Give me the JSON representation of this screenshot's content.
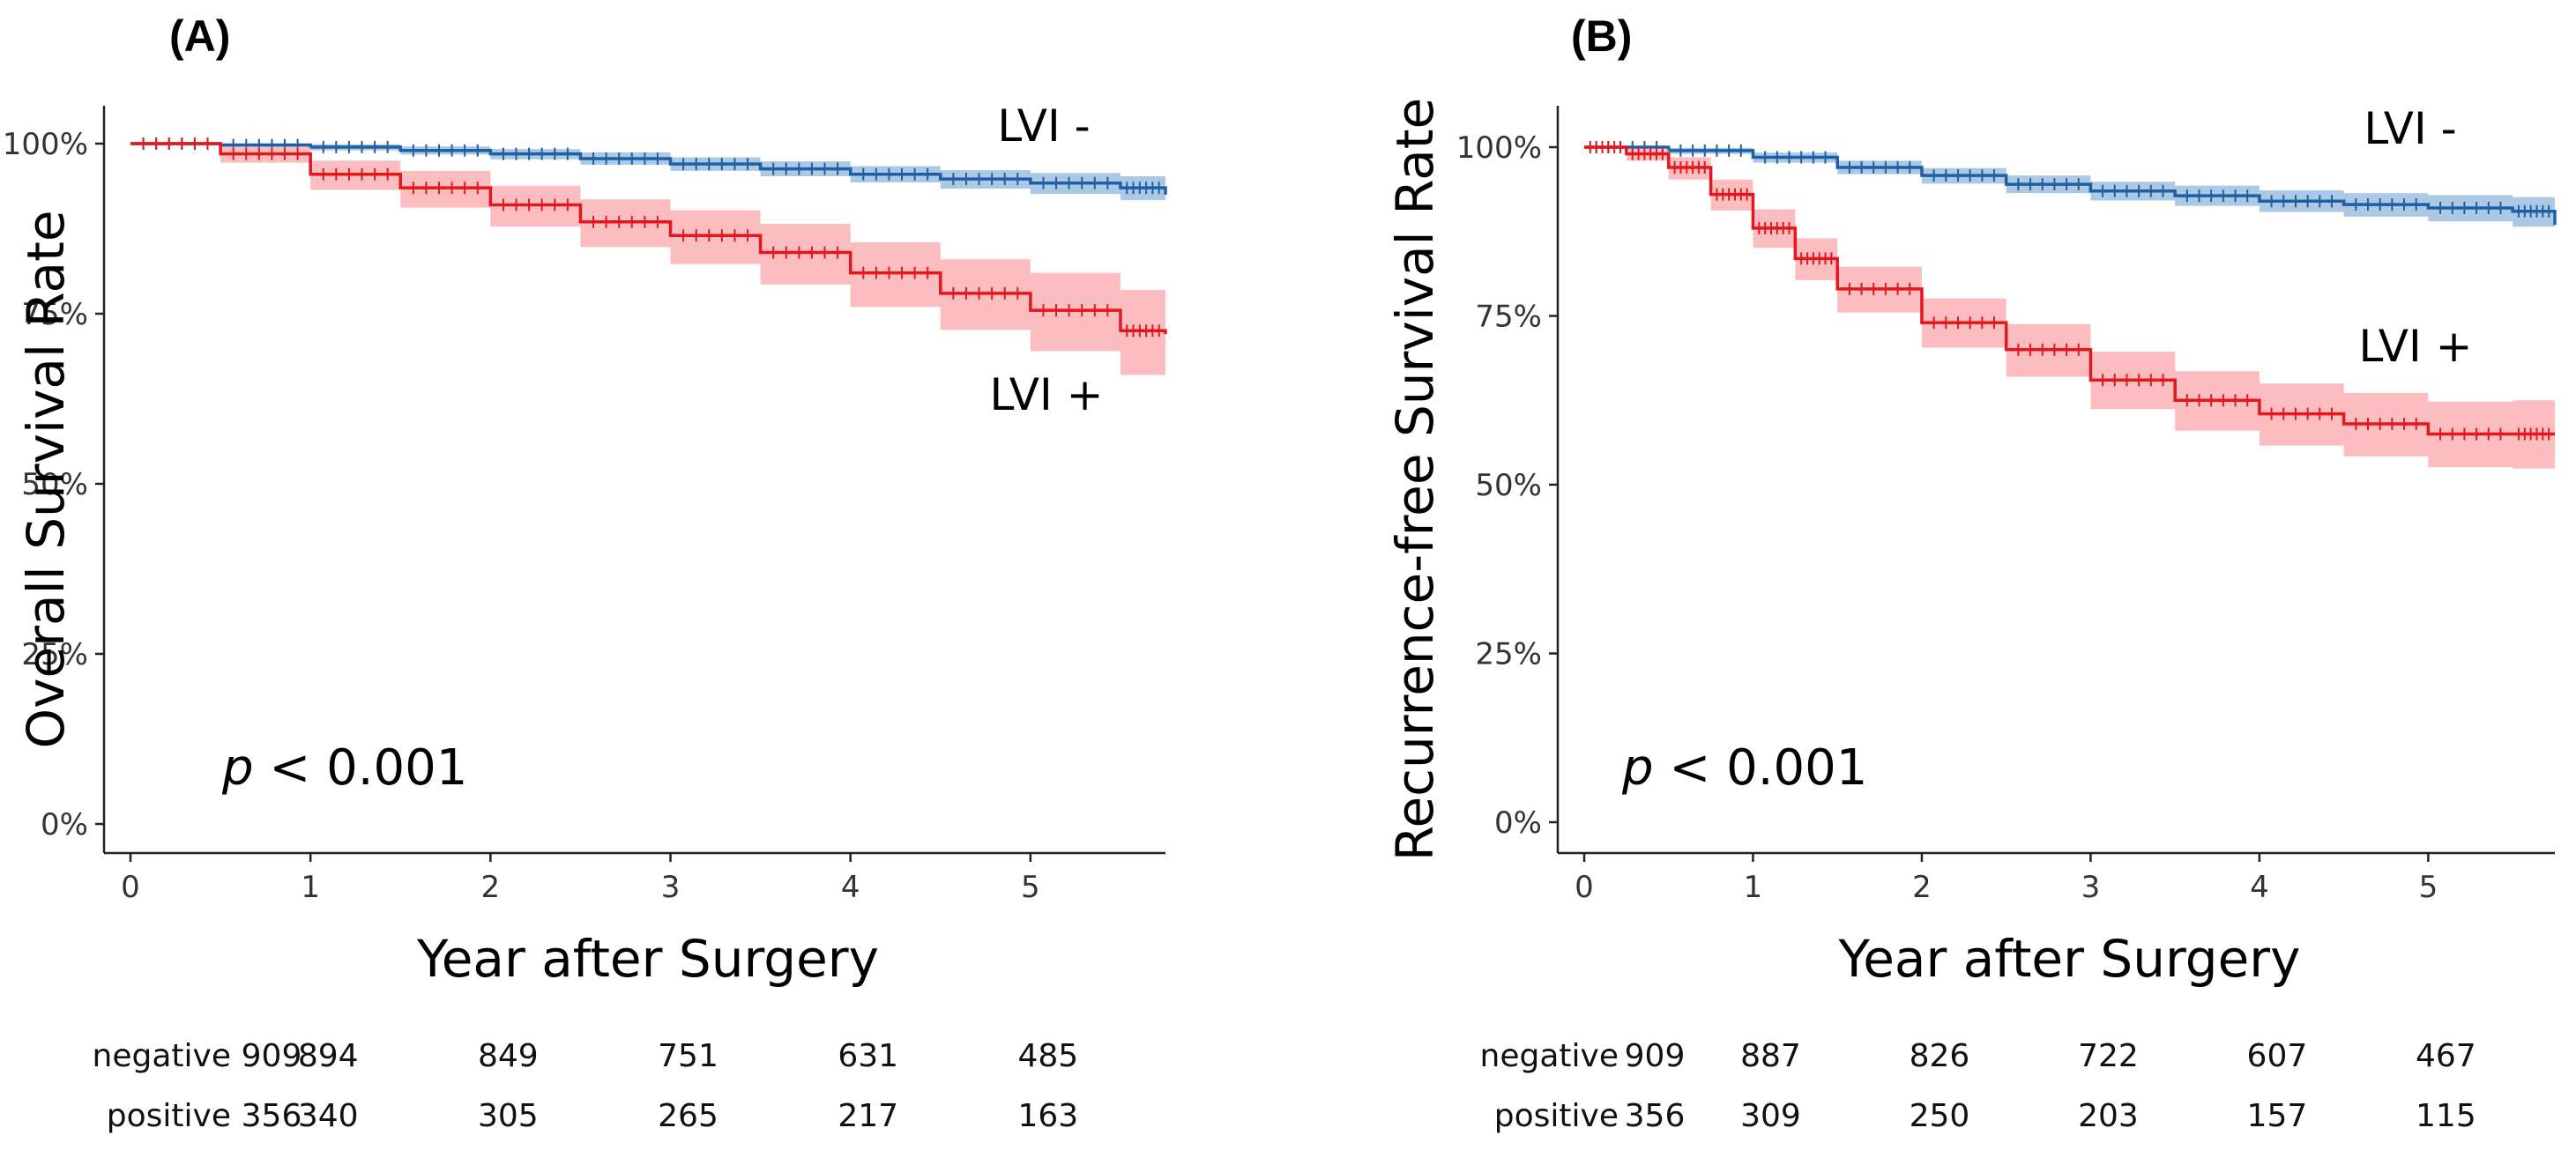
{
  "chart_data": [
    {
      "type": "line",
      "panel": "(A)",
      "ylabel": "Overall Survival Rate",
      "xlabel": "Year after Surgery",
      "xlim": [
        0,
        5.75
      ],
      "ylim": [
        0,
        1
      ],
      "xticks": [
        "0",
        "1",
        "2",
        "3",
        "4",
        "5"
      ],
      "yticks": [
        "0%",
        "25%",
        "50%",
        "75%",
        "100%"
      ],
      "annotation_prefix": "p",
      "annotation_rest": " < 0.001",
      "series": [
        {
          "name": "LVI -",
          "color": "#1f5fa3",
          "band_color": "#8fb7dc",
          "x": [
            0,
            0.5,
            1,
            1.5,
            2,
            2.5,
            3,
            3.5,
            4,
            4.5,
            5,
            5.5,
            5.75
          ],
          "values": [
            1.0,
            0.998,
            0.995,
            0.99,
            0.985,
            0.978,
            0.97,
            0.963,
            0.955,
            0.948,
            0.942,
            0.935,
            0.925
          ],
          "lower": [
            1.0,
            0.995,
            0.99,
            0.984,
            0.977,
            0.969,
            0.96,
            0.952,
            0.943,
            0.934,
            0.926,
            0.917,
            0.905
          ],
          "upper": [
            1.0,
            1.0,
            0.999,
            0.996,
            0.992,
            0.987,
            0.98,
            0.974,
            0.967,
            0.961,
            0.957,
            0.952,
            0.945
          ]
        },
        {
          "name": "LVI +",
          "color": "#e3181f",
          "band_color": "#f9a7aa",
          "x": [
            0,
            0.5,
            1,
            1.5,
            2,
            2.5,
            3,
            3.5,
            4,
            4.5,
            5,
            5.5,
            5.75
          ],
          "values": [
            1.0,
            0.985,
            0.955,
            0.935,
            0.91,
            0.885,
            0.865,
            0.84,
            0.81,
            0.78,
            0.755,
            0.725,
            0.72
          ],
          "lower": [
            1.0,
            0.972,
            0.932,
            0.906,
            0.878,
            0.848,
            0.823,
            0.793,
            0.76,
            0.726,
            0.695,
            0.66,
            0.652
          ],
          "upper": [
            1.0,
            0.995,
            0.975,
            0.96,
            0.938,
            0.918,
            0.902,
            0.882,
            0.855,
            0.83,
            0.81,
            0.785,
            0.782
          ]
        }
      ],
      "risk_table": {
        "rows": [
          {
            "label": "negative",
            "values": [
              "909",
              "894",
              "849",
              "751",
              "631",
              "485"
            ]
          },
          {
            "label": "positive",
            "values": [
              "356",
              "340",
              "305",
              "265",
              "217",
              "163"
            ]
          }
        ]
      }
    },
    {
      "type": "line",
      "panel": "(B)",
      "ylabel": "Recurrence-free Survival Rate",
      "xlabel": "Year after Surgery",
      "xlim": [
        0,
        5.75
      ],
      "ylim": [
        0,
        1
      ],
      "xticks": [
        "0",
        "1",
        "2",
        "3",
        "4",
        "5"
      ],
      "yticks": [
        "0%",
        "25%",
        "50%",
        "75%",
        "100%"
      ],
      "annotation_prefix": "p",
      "annotation_rest": " < 0.001",
      "series": [
        {
          "name": "LVI -",
          "color": "#1f5fa3",
          "band_color": "#8fb7dc",
          "x": [
            0,
            0.5,
            1,
            1.5,
            2,
            2.5,
            3,
            3.5,
            4,
            4.5,
            5,
            5.5,
            5.75
          ],
          "values": [
            1.0,
            0.995,
            0.985,
            0.97,
            0.958,
            0.945,
            0.935,
            0.928,
            0.92,
            0.915,
            0.91,
            0.905,
            0.885
          ],
          "lower": [
            1.0,
            0.99,
            0.977,
            0.96,
            0.946,
            0.932,
            0.921,
            0.913,
            0.904,
            0.897,
            0.89,
            0.882,
            0.86
          ],
          "upper": [
            1.0,
            0.999,
            0.992,
            0.98,
            0.969,
            0.958,
            0.949,
            0.943,
            0.936,
            0.932,
            0.929,
            0.926,
            0.908
          ]
        },
        {
          "name": "LVI +",
          "color": "#e3181f",
          "band_color": "#f9a7aa",
          "x": [
            0,
            0.25,
            0.5,
            0.75,
            1,
            1.25,
            1.5,
            2,
            2.5,
            3,
            3.5,
            4,
            4.5,
            5,
            5.5,
            5.75
          ],
          "values": [
            1.0,
            0.99,
            0.97,
            0.93,
            0.88,
            0.835,
            0.79,
            0.74,
            0.7,
            0.655,
            0.625,
            0.605,
            0.59,
            0.575,
            0.575,
            0.575
          ],
          "lower": [
            1.0,
            0.98,
            0.952,
            0.906,
            0.851,
            0.803,
            0.755,
            0.703,
            0.66,
            0.612,
            0.58,
            0.558,
            0.542,
            0.526,
            0.524,
            0.523
          ],
          "upper": [
            1.0,
            0.997,
            0.985,
            0.952,
            0.908,
            0.865,
            0.823,
            0.776,
            0.738,
            0.697,
            0.668,
            0.65,
            0.636,
            0.623,
            0.625,
            0.627
          ]
        }
      ],
      "risk_table": {
        "rows": [
          {
            "label": "negative",
            "values": [
              "909",
              "887",
              "826",
              "722",
              "607",
              "467"
            ]
          },
          {
            "label": "positive",
            "values": [
              "356",
              "309",
              "250",
              "203",
              "157",
              "115"
            ]
          }
        ]
      }
    }
  ]
}
